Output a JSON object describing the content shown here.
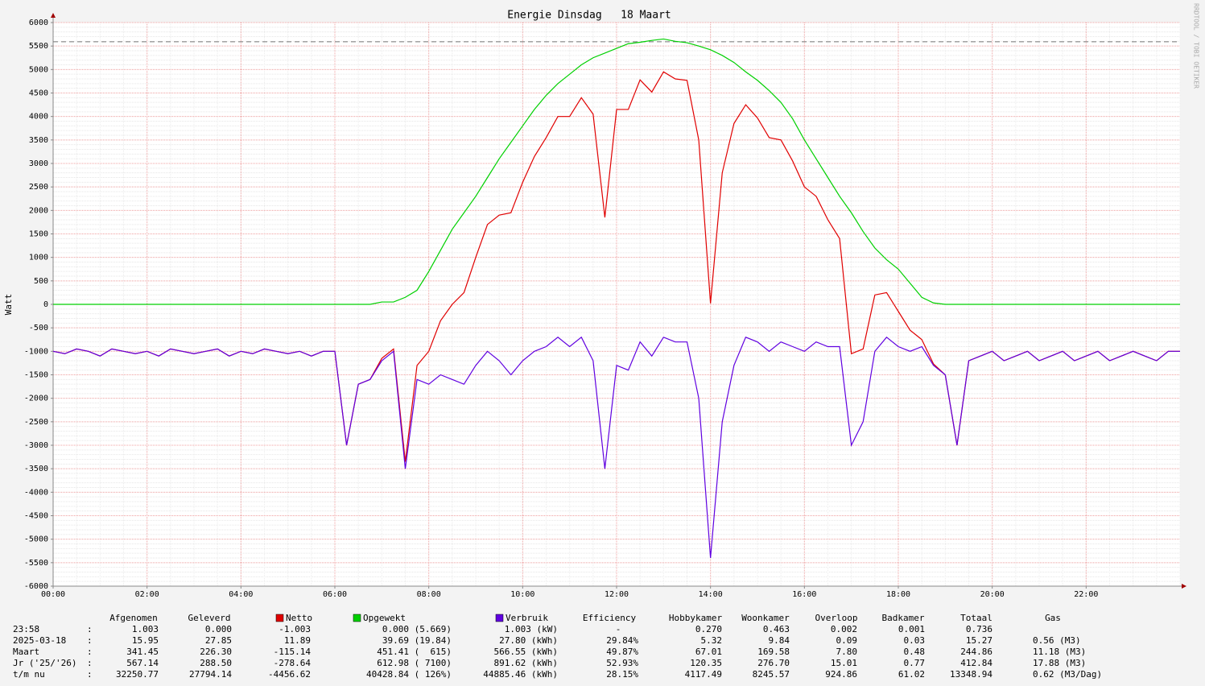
{
  "chart_data": {
    "type": "line",
    "title": "Energie Dinsdag   18 Maart",
    "y_label": "Watt",
    "watermark": "RRDTOOL / TOBI OETIKER",
    "x": [
      0,
      0.25,
      0.5,
      0.75,
      1,
      1.25,
      1.5,
      1.75,
      2,
      2.25,
      2.5,
      2.75,
      3,
      3.25,
      3.5,
      3.75,
      4,
      4.25,
      4.5,
      4.75,
      5,
      5.25,
      5.5,
      5.75,
      6,
      6.25,
      6.5,
      6.75,
      7,
      7.25,
      7.5,
      7.75,
      8,
      8.25,
      8.5,
      8.75,
      9,
      9.25,
      9.5,
      9.75,
      10,
      10.25,
      10.5,
      10.75,
      11,
      11.25,
      11.5,
      11.75,
      12,
      12.25,
      12.5,
      12.75,
      13,
      13.25,
      13.5,
      13.75,
      14,
      14.25,
      14.5,
      14.75,
      15,
      15.25,
      15.5,
      15.75,
      16,
      16.25,
      16.5,
      16.75,
      17,
      17.25,
      17.5,
      17.75,
      18,
      18.25,
      18.5,
      18.75,
      19,
      19.25,
      19.5,
      19.75,
      20,
      20.25,
      20.5,
      20.75,
      21,
      21.25,
      21.5,
      21.75,
      22,
      22.25,
      22.5,
      22.75,
      23,
      23.25,
      23.5,
      23.75,
      24
    ],
    "series": [
      {
        "name": "Netto",
        "color": "#e00000",
        "values": [
          -1000,
          -1050,
          -950,
          -1000,
          -1100,
          -950,
          -1000,
          -1050,
          -1000,
          -1100,
          -950,
          -1000,
          -1050,
          -1000,
          -950,
          -1100,
          -1000,
          -1050,
          -950,
          -1000,
          -1050,
          -1000,
          -1100,
          -1000,
          -1000,
          -3000,
          -1700,
          -1600,
          -1150,
          -950,
          -3350,
          -1300,
          -1000,
          -350,
          0,
          250,
          1000,
          1700,
          1900,
          1950,
          2600,
          3150,
          3550,
          4000,
          4000,
          4400,
          4050,
          1850,
          4150,
          4150,
          4780,
          4520,
          4950,
          4800,
          4770,
          3500,
          20,
          2800,
          3850,
          4250,
          3970,
          3550,
          3500,
          3050,
          2500,
          2300,
          1800,
          1400,
          -1050,
          -950,
          200,
          250,
          -150,
          -550,
          -750,
          -1270,
          -1500,
          -3000,
          -1200,
          -1100,
          -1000,
          -1200,
          -1100,
          -1000,
          -1200,
          -1100,
          -1000,
          -1200,
          -1100,
          -1000,
          -1200,
          -1100,
          -1000,
          -1100,
          -1200,
          -1000,
          -1000
        ]
      },
      {
        "name": "Opgewekt",
        "color": "#00d000",
        "values": [
          0,
          0,
          0,
          0,
          0,
          0,
          0,
          0,
          0,
          0,
          0,
          0,
          0,
          0,
          0,
          0,
          0,
          0,
          0,
          0,
          0,
          0,
          0,
          0,
          0,
          0,
          0,
          0,
          50,
          50,
          150,
          300,
          700,
          1150,
          1600,
          1950,
          2300,
          2700,
          3100,
          3450,
          3800,
          4150,
          4450,
          4700,
          4900,
          5100,
          5250,
          5350,
          5450,
          5550,
          5580,
          5620,
          5650,
          5600,
          5570,
          5500,
          5420,
          5300,
          5150,
          4950,
          4770,
          4550,
          4300,
          3950,
          3500,
          3100,
          2700,
          2300,
          1950,
          1550,
          1200,
          950,
          750,
          450,
          150,
          30,
          0,
          0,
          0,
          0,
          0,
          0,
          0,
          0,
          0,
          0,
          0,
          0,
          0,
          0,
          0,
          0,
          0,
          0,
          0,
          0,
          0
        ]
      },
      {
        "name": "Verbruik",
        "color": "#6000e0",
        "values": [
          -1000,
          -1050,
          -950,
          -1000,
          -1100,
          -950,
          -1000,
          -1050,
          -1000,
          -1100,
          -950,
          -1000,
          -1050,
          -1000,
          -950,
          -1100,
          -1000,
          -1050,
          -950,
          -1000,
          -1050,
          -1000,
          -1100,
          -1000,
          -1000,
          -3000,
          -1700,
          -1600,
          -1200,
          -1000,
          -3500,
          -1600,
          -1700,
          -1500,
          -1600,
          -1700,
          -1300,
          -1000,
          -1200,
          -1500,
          -1200,
          -1000,
          -900,
          -700,
          -900,
          -700,
          -1200,
          -3500,
          -1300,
          -1400,
          -800,
          -1100,
          -700,
          -800,
          -800,
          -2000,
          -5400,
          -2500,
          -1300,
          -700,
          -800,
          -1000,
          -800,
          -900,
          -1000,
          -800,
          -900,
          -900,
          -3000,
          -2500,
          -1000,
          -700,
          -900,
          -1000,
          -900,
          -1300,
          -1500,
          -3000,
          -1200,
          -1100,
          -1000,
          -1200,
          -1100,
          -1000,
          -1200,
          -1100,
          -1000,
          -1200,
          -1100,
          -1000,
          -1200,
          -1100,
          -1000,
          -1100,
          -1200,
          -1000,
          -1000
        ]
      }
    ],
    "max_line": 5590,
    "xlim": [
      0,
      24
    ],
    "xticks": [
      {
        "value": 0,
        "label": "00:00"
      },
      {
        "value": 2,
        "label": "02:00"
      },
      {
        "value": 4,
        "label": "04:00"
      },
      {
        "value": 6,
        "label": "06:00"
      },
      {
        "value": 8,
        "label": "08:00"
      },
      {
        "value": 10,
        "label": "10:00"
      },
      {
        "value": 12,
        "label": "12:00"
      },
      {
        "value": 14,
        "label": "14:00"
      },
      {
        "value": 16,
        "label": "16:00"
      },
      {
        "value": 18,
        "label": "18:00"
      },
      {
        "value": 20,
        "label": "20:00"
      },
      {
        "value": 22,
        "label": "22:00"
      }
    ],
    "ylim": [
      -6000,
      6000
    ],
    "yticks": [
      -6000,
      -5500,
      -5000,
      -4500,
      -4000,
      -3500,
      -3000,
      -2500,
      -2000,
      -1500,
      -1000,
      -500,
      0,
      500,
      1000,
      1500,
      2000,
      2500,
      3000,
      3500,
      4000,
      4500,
      5000,
      5500,
      6000
    ],
    "grid": true
  },
  "table": {
    "headers": [
      "Afgenomen",
      "Geleverd",
      "Efficiency",
      "Hobbykamer",
      "Woonkamer",
      "Overloop",
      "Badkamer",
      "Totaal",
      "Gas"
    ],
    "rows": [
      [
        "23:58",
        ":",
        "1.003",
        "0.000",
        "-1.003",
        "0.000 (5.669)",
        "1.003 (kW)",
        "-",
        "0.270",
        "0.463",
        "0.002",
        "0.001",
        "0.736"
      ],
      [
        "2025-03-18",
        ":",
        "15.95",
        "27.85",
        "11.89",
        "39.69 (19.84)",
        "27.80 (kWh)",
        "29.84%",
        "5.32",
        "9.84",
        "0.09",
        "0.03",
        "15.27",
        "0.56 (M3)"
      ],
      [
        "Maart",
        ":",
        "341.45",
        "226.30",
        "-115.14",
        "451.41 (  615)",
        "566.55 (kWh)",
        "49.87%",
        "67.01",
        "169.58",
        "7.80",
        "0.48",
        "244.86",
        "11.18 (M3)"
      ],
      [
        "Jr ('25/'26)",
        ":",
        "567.14",
        "288.50",
        "-278.64",
        "612.98 ( 7100)",
        "891.62 (kWh)",
        "52.93%",
        "120.35",
        "276.70",
        "15.01",
        "0.77",
        "412.84",
        "17.88 (M3)"
      ],
      [
        "t/m nu",
        ":",
        "32250.77",
        "27794.14",
        "-4456.62",
        "40428.84 ( 126%)",
        "44885.46 (kWh)",
        "28.15%",
        "4117.49",
        "8245.57",
        "924.86",
        "61.02",
        "13348.94",
        "0.62 (M3/Dag)"
      ]
    ]
  }
}
